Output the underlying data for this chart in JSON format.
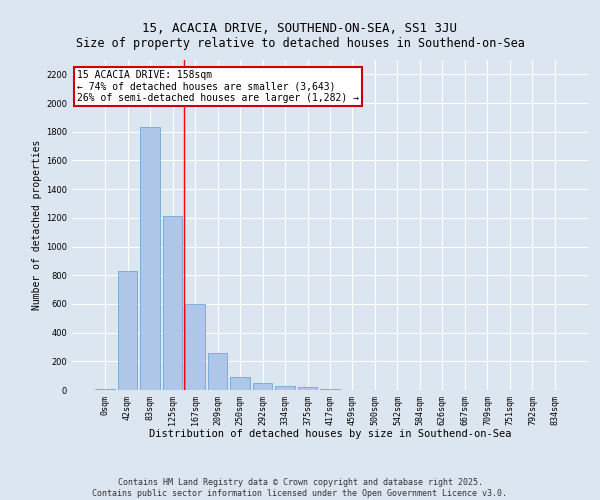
{
  "title": "15, ACACIA DRIVE, SOUTHEND-ON-SEA, SS1 3JU",
  "subtitle": "Size of property relative to detached houses in Southend-on-Sea",
  "xlabel": "Distribution of detached houses by size in Southend-on-Sea",
  "ylabel": "Number of detached properties",
  "categories": [
    "0sqm",
    "42sqm",
    "83sqm",
    "125sqm",
    "167sqm",
    "209sqm",
    "250sqm",
    "292sqm",
    "334sqm",
    "375sqm",
    "417sqm",
    "459sqm",
    "500sqm",
    "542sqm",
    "584sqm",
    "626sqm",
    "667sqm",
    "709sqm",
    "751sqm",
    "792sqm",
    "834sqm"
  ],
  "bar_values": [
    10,
    830,
    1830,
    1210,
    600,
    260,
    90,
    50,
    30,
    20,
    10,
    0,
    0,
    0,
    0,
    0,
    0,
    0,
    0,
    0,
    0
  ],
  "bar_color": "#aec6e8",
  "bar_edge_color": "#5a9fd4",
  "bar_linewidth": 0.5,
  "ylim": [
    0,
    2300
  ],
  "yticks": [
    0,
    200,
    400,
    600,
    800,
    1000,
    1200,
    1400,
    1600,
    1800,
    2000,
    2200
  ],
  "red_line_x": 3.5,
  "annotation_text": "15 ACACIA DRIVE: 158sqm\n← 74% of detached houses are smaller (3,643)\n26% of semi-detached houses are larger (1,282) →",
  "annotation_box_color": "#ffffff",
  "annotation_box_edge_color": "#cc0000",
  "footer_line1": "Contains HM Land Registry data © Crown copyright and database right 2025.",
  "footer_line2": "Contains public sector information licensed under the Open Government Licence v3.0.",
  "background_color": "#dce6f0",
  "plot_background": "#dce6f0",
  "grid_color": "#ffffff",
  "title_fontsize": 9,
  "subtitle_fontsize": 8.5,
  "xlabel_fontsize": 7.5,
  "ylabel_fontsize": 7,
  "tick_fontsize": 6,
  "annotation_fontsize": 7,
  "footer_fontsize": 6
}
